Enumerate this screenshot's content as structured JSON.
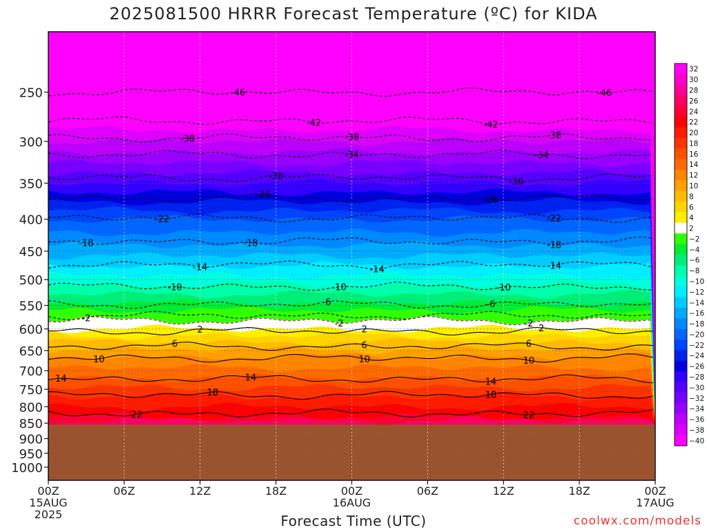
{
  "title": "2025081500 HRRR Forecast Temperature (ºC) for KIDA",
  "xlabel": "Forecast Time (UTC)",
  "credit": "coolwx.com/models",
  "colors": {
    "ground": "#9b532e",
    "bar_bg": "#ffffff"
  },
  "chart_data": {
    "type": "heatmap",
    "title": "2025081500 HRRR Forecast Temperature (ºC) for KIDA",
    "xlabel": "Forecast Time (UTC)",
    "ylabel": "",
    "x_ticks": [
      {
        "hour": 0,
        "lines": [
          "00Z",
          "15AUG",
          "2025"
        ]
      },
      {
        "hour": 6,
        "lines": [
          "06Z"
        ]
      },
      {
        "hour": 12,
        "lines": [
          "12Z"
        ]
      },
      {
        "hour": 18,
        "lines": [
          "18Z"
        ]
      },
      {
        "hour": 24,
        "lines": [
          "00Z",
          "16AUG"
        ]
      },
      {
        "hour": 30,
        "lines": [
          "06Z"
        ]
      },
      {
        "hour": 36,
        "lines": [
          "12Z"
        ]
      },
      {
        "hour": 42,
        "lines": [
          "18Z"
        ]
      },
      {
        "hour": 48,
        "lines": [
          "00Z",
          "17AUG"
        ]
      }
    ],
    "xlim": [
      0,
      48
    ],
    "y_ticks": [
      250,
      300,
      350,
      400,
      450,
      500,
      550,
      600,
      650,
      700,
      750,
      800,
      850,
      900,
      950,
      1000
    ],
    "ylim_hpa": [
      1050,
      200
    ],
    "y_scale": "log",
    "ground_level_hpa": 855,
    "grid": true,
    "colorbar": {
      "labels": [
        "32",
        "30",
        "28",
        "26",
        "24",
        "22",
        "20",
        "18",
        "16",
        "14",
        "12",
        "10",
        "8",
        "6",
        "4",
        "2",
        "−2",
        "−4",
        "−6",
        "−8",
        "−10",
        "−12",
        "−14",
        "−16",
        "−18",
        "−20",
        "−22",
        "−24",
        "−26",
        "−28",
        "−30",
        "−32",
        "−34",
        "−36",
        "−38",
        "−40"
      ],
      "colors": [
        "#ff00ff",
        "#ff00cc",
        "#ff0099",
        "#ff0066",
        "#ff0033",
        "#ff0000",
        "#ff1a00",
        "#ff3300",
        "#ff5000",
        "#ff6a00",
        "#ff8500",
        "#ffa000",
        "#ffbb00",
        "#ffd500",
        "#ffee00",
        "#ffffff",
        "#33ff00",
        "#00ee33",
        "#00ee77",
        "#00ffaa",
        "#00ffdd",
        "#00eeff",
        "#00ccff",
        "#00aaff",
        "#0088ff",
        "#0066ff",
        "#0044ff",
        "#0022ee",
        "#0000dd",
        "#3300ff",
        "#5500ff",
        "#7700ff",
        "#9900ff",
        "#bb00ff",
        "#dd00ff",
        "#ff00ff"
      ]
    },
    "temperature_profile": [
      {
        "p": 200,
        "t": -52
      },
      {
        "p": 225,
        "t": -49
      },
      {
        "p": 250,
        "t": -46
      },
      {
        "p": 275,
        "t": -42
      },
      {
        "p": 300,
        "t": -38
      },
      {
        "p": 325,
        "t": -34
      },
      {
        "p": 350,
        "t": -30
      },
      {
        "p": 375,
        "t": -26
      },
      {
        "p": 400,
        "t": -22
      },
      {
        "p": 440,
        "t": -18
      },
      {
        "p": 475,
        "t": -14
      },
      {
        "p": 510,
        "t": -10
      },
      {
        "p": 545,
        "t": -6
      },
      {
        "p": 575,
        "t": -2
      },
      {
        "p": 600,
        "t": 2
      },
      {
        "p": 630,
        "t": 6
      },
      {
        "p": 665,
        "t": 10
      },
      {
        "p": 720,
        "t": 14
      },
      {
        "p": 770,
        "t": 18
      },
      {
        "p": 830,
        "t": 22
      },
      {
        "p": 855,
        "t": 26
      }
    ],
    "contours": [
      {
        "label": "-46",
        "p": 250,
        "hours": [
          15,
          44
        ]
      },
      {
        "label": "-42",
        "p": 278,
        "hours": [
          21,
          35
        ]
      },
      {
        "label": "-38",
        "p": 296,
        "hours": [
          11,
          24,
          40
        ]
      },
      {
        "label": "-34",
        "p": 315,
        "hours": [
          24,
          39
        ]
      },
      {
        "label": "-30",
        "p": 343,
        "hours": [
          18,
          37
        ]
      },
      {
        "label": "-26",
        "p": 370,
        "hours": [
          17,
          35
        ]
      },
      {
        "label": "-22",
        "p": 398,
        "hours": [
          9,
          40
        ]
      },
      {
        "label": "-18",
        "p": 434,
        "hours": [
          3,
          16,
          40
        ]
      },
      {
        "label": "-14",
        "p": 473,
        "hours": [
          12,
          26,
          40
        ]
      },
      {
        "label": "-10",
        "p": 513,
        "hours": [
          10,
          23,
          36
        ]
      },
      {
        "label": "-6",
        "p": 548,
        "hours": [
          22,
          35
        ]
      },
      {
        "label": "-2",
        "p": 571,
        "hours": [
          3
        ]
      },
      {
        "label": "-2",
        "p": 582,
        "hours": [
          23,
          38
        ]
      },
      {
        "label": "2",
        "p": 605,
        "hours": [
          12,
          25,
          39
        ]
      },
      {
        "label": "6",
        "p": 640,
        "hours": [
          10,
          25,
          38
        ]
      },
      {
        "label": "10",
        "p": 668,
        "hours": [
          4,
          25,
          38
        ]
      },
      {
        "label": "14",
        "p": 722,
        "hours": [
          1,
          16,
          35
        ]
      },
      {
        "label": "18",
        "p": 766,
        "hours": [
          13,
          35
        ]
      },
      {
        "label": "22",
        "p": 820,
        "hours": [
          7,
          38
        ]
      }
    ]
  }
}
